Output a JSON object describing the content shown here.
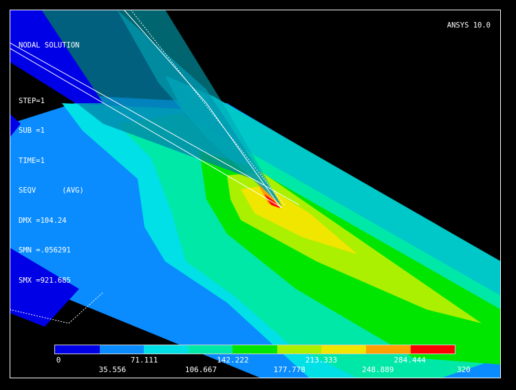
{
  "header": {
    "left_title": "NODAL SOLUTION",
    "right_title": "ANSYS 10.0"
  },
  "info_lines": [
    "STEP=1",
    "SUB =1",
    "TIME=1",
    "SEQV      (AVG)",
    "DMX =104.24",
    "SMN =.056291",
    "SMX =921.685"
  ],
  "legend": {
    "colors": [
      "#0000e6",
      "#0a8cff",
      "#00e0e6",
      "#00e8a8",
      "#00e600",
      "#aaf000",
      "#f0e600",
      "#ffa000",
      "#ff0000"
    ],
    "labels_top": [
      "0",
      "71.111",
      "142.222",
      "213.333",
      "284.444"
    ],
    "labels_bottom": [
      "35.556",
      "106.667",
      "177.778",
      "248.889",
      "320"
    ]
  },
  "model_colors": {
    "background": "#000000",
    "blue": "#0000e6",
    "light_blue": "#0a8cff",
    "cyan": "#00e0e6",
    "aqua": "#00e8a8",
    "green": "#00e600",
    "yellow_green": "#aaf000",
    "yellow": "#f0e600",
    "orange": "#ffa000",
    "red": "#ff0000"
  }
}
